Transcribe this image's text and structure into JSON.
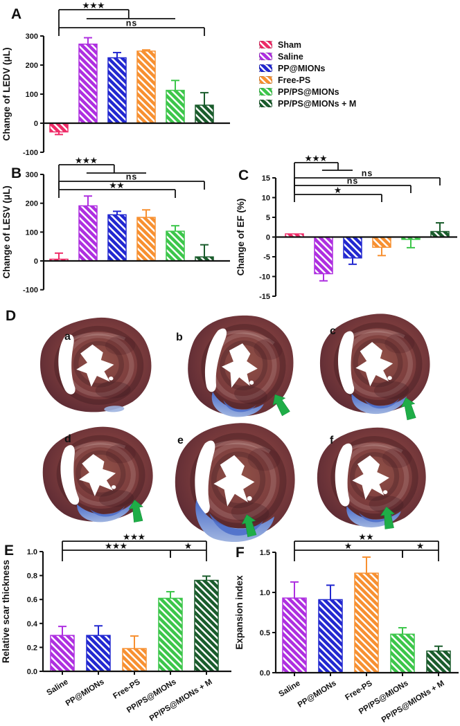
{
  "figure": {
    "panels": {
      "A": "A",
      "B": "B",
      "C": "C",
      "D": "D",
      "E": "E",
      "F": "F"
    }
  },
  "legend": {
    "items": [
      {
        "label": "Sham",
        "color": "#EE2B67"
      },
      {
        "label": "Saline",
        "color": "#AE2FE0"
      },
      {
        "label": "PP@MIONs",
        "color": "#2228D0"
      },
      {
        "label": "Free-PS",
        "color": "#F79031"
      },
      {
        "label": "PP/PS@MIONs",
        "color": "#3CC64A"
      },
      {
        "label": "PP/PS@MIONs + M",
        "color": "#1A5C2C"
      }
    ]
  },
  "chart_data": [
    {
      "id": "A",
      "type": "bar",
      "title": "",
      "ylabel": "Change of LEDV (μL)",
      "xlabel": "",
      "ylim": [
        -100,
        300
      ],
      "yticks": [
        "300",
        "200",
        "100",
        "0",
        "-100"
      ],
      "categories": [
        "Sham",
        "Saline",
        "PP@MIONs",
        "Free-PS",
        "PP/PS@MIONs",
        "PP/PS@MIONs + M"
      ],
      "values": [
        -30,
        272,
        225,
        248,
        113,
        62
      ],
      "errors": [
        9,
        22,
        18,
        4,
        34,
        43
      ],
      "bar_colors": [
        "#EE2B67",
        "#AE2FE0",
        "#2228D0",
        "#F79031",
        "#3CC64A",
        "#1A5C2C"
      ],
      "show_xticklabels": false,
      "sig_lines": [
        {
          "x1": 0,
          "x2": 2.4,
          "row": 0,
          "label": "★★★",
          "d1": 30,
          "d2": 13
        },
        {
          "x1": 0.95,
          "x2": 4,
          "row": 1,
          "label": "",
          "d1": 0,
          "d2": 0
        },
        {
          "x1": 0,
          "x2": 5,
          "row": 2,
          "label": "ns",
          "d1": 12,
          "d2": 12
        }
      ]
    },
    {
      "id": "B",
      "type": "bar",
      "title": "",
      "ylabel": "Change of LESV (μL)",
      "xlabel": "",
      "ylim": [
        -100,
        300
      ],
      "yticks": [
        "300",
        "200",
        "100",
        "0",
        "-100"
      ],
      "categories": [
        "Sham",
        "Saline",
        "PP@MIONs",
        "Free-PS",
        "PP/PS@MIONs",
        "PP/PS@MIONs + M"
      ],
      "values": [
        6,
        191,
        160,
        151,
        103,
        14
      ],
      "errors": [
        21,
        34,
        12,
        26,
        19,
        42
      ],
      "bar_colors": [
        "#EE2B67",
        "#AE2FE0",
        "#2228D0",
        "#F79031",
        "#3CC64A",
        "#1A5C2C"
      ],
      "show_xticklabels": false,
      "sig_lines": [
        {
          "x1": 0,
          "x2": 1.9,
          "row": 0,
          "label": "★★★",
          "d1": 36,
          "d2": 12
        },
        {
          "x1": 0.95,
          "x2": 3,
          "row": 1,
          "label": "",
          "d1": 0,
          "d2": 0
        },
        {
          "x1": 0,
          "x2": 5,
          "row": 2,
          "label": "ns",
          "d1": 12,
          "d2": 12
        },
        {
          "x1": 0,
          "x2": 4,
          "row": 3,
          "label": "★★",
          "d1": 12,
          "d2": 12
        }
      ]
    },
    {
      "id": "C",
      "type": "bar",
      "title": "",
      "ylabel": "Change of EF (%)",
      "xlabel": "",
      "ylim": [
        -15,
        15
      ],
      "yticks": [
        "15",
        "10",
        "5",
        "0",
        "-5",
        "-10",
        "-15"
      ],
      "categories": [
        "Sham",
        "Saline",
        "PP@MIONs",
        "Free-PS",
        "PP/PS@MIONs",
        "PP/PS@MIONs + M"
      ],
      "values": [
        0.8,
        -9.3,
        -5.3,
        -2.6,
        -0.6,
        1.4
      ],
      "errors": [
        0,
        1.8,
        1.6,
        2.1,
        2.1,
        2.2
      ],
      "bar_colors": [
        "#EE2B67",
        "#AE2FE0",
        "#2228D0",
        "#F79031",
        "#3CC64A",
        "#1A5C2C"
      ],
      "show_xticklabels": false,
      "sig_lines": [
        {
          "x1": 0,
          "x2": 1.5,
          "row": 0,
          "label": "★★★",
          "d1": 46,
          "d2": 11
        },
        {
          "x1": 0.95,
          "x2": 2,
          "row": 1,
          "label": "",
          "d1": 0,
          "d2": 0
        },
        {
          "x1": 0,
          "x2": 5,
          "row": 2,
          "label": "ns",
          "d1": 11,
          "d2": 11
        },
        {
          "x1": 0,
          "x2": 4,
          "row": 3,
          "label": "ns",
          "d1": 11,
          "d2": 11
        },
        {
          "x1": 0,
          "x2": 3,
          "row": 4,
          "label": "★",
          "d1": 11,
          "d2": 11
        }
      ]
    },
    {
      "id": "E",
      "type": "bar",
      "title": "",
      "ylabel": "Relative scar thickness",
      "xlabel": "",
      "ylim": [
        0,
        1.0
      ],
      "yticks": [
        "1.0",
        "0.8",
        "0.6",
        "0.4",
        "0.2",
        "0.0"
      ],
      "categories": [
        "Saline",
        "PP@MIONs",
        "Free-PS",
        "PP/PS@MIONs",
        "PP/PS@MIONs + M"
      ],
      "values": [
        0.3,
        0.3,
        0.19,
        0.61,
        0.76
      ],
      "errors": [
        0.075,
        0.08,
        0.105,
        0.055,
        0.035
      ],
      "bar_colors": [
        "#AE2FE0",
        "#2228D0",
        "#F79031",
        "#3CC64A",
        "#1A5C2C"
      ],
      "show_xticklabels": true,
      "sig_lines": [
        {
          "x1": 0,
          "x2": 4,
          "row": 0,
          "label": "★★★",
          "d1": 13,
          "d2": 13
        },
        {
          "x1": 0,
          "x2": 3,
          "row": 1,
          "label": "★★★",
          "d1": 16,
          "d2": 11
        },
        {
          "x1": 3,
          "x2": 4,
          "row": 1,
          "label": "★",
          "d1": 11,
          "d2": 16
        }
      ]
    },
    {
      "id": "F",
      "type": "bar",
      "title": "",
      "ylabel": "Expansion index",
      "xlabel": "",
      "ylim": [
        0,
        1.5
      ],
      "yticks": [
        "1.5",
        "1.0",
        "0.5",
        "0.0"
      ],
      "categories": [
        "Saline",
        "PP@MIONs",
        "Free-PS",
        "PP/PS@MIONs",
        "PP/PS@MIONs + M"
      ],
      "values": [
        0.93,
        0.91,
        1.24,
        0.48,
        0.27
      ],
      "errors": [
        0.2,
        0.18,
        0.2,
        0.08,
        0.06
      ],
      "bar_colors": [
        "#AE2FE0",
        "#2228D0",
        "#F79031",
        "#3CC64A",
        "#1A5C2C"
      ],
      "show_xticklabels": true,
      "sig_lines": [
        {
          "x1": 0,
          "x2": 4,
          "row": 0,
          "label": "★★",
          "d1": 13,
          "d2": 13
        },
        {
          "x1": 0,
          "x2": 3,
          "row": 1,
          "label": "★",
          "d1": 16,
          "d2": 11
        },
        {
          "x1": 3,
          "x2": 4,
          "row": 1,
          "label": "★",
          "d1": 11,
          "d2": 16
        }
      ]
    }
  ],
  "histology": {
    "stain_colors": {
      "myocardium": "#7A3B3C",
      "scar": "#4A6CC9",
      "scar_light": "#9FB4E0",
      "arrow": "#1FAD47"
    },
    "items": [
      {
        "label": "a",
        "arrow": false,
        "scar": "tiny"
      },
      {
        "label": "b",
        "arrow": true,
        "scar": "med"
      },
      {
        "label": "c",
        "arrow": true,
        "scar": "med"
      },
      {
        "label": "d",
        "arrow": true,
        "scar": "med"
      },
      {
        "label": "e",
        "arrow": true,
        "scar": "large"
      },
      {
        "label": "f",
        "arrow": true,
        "scar": "med"
      }
    ]
  }
}
